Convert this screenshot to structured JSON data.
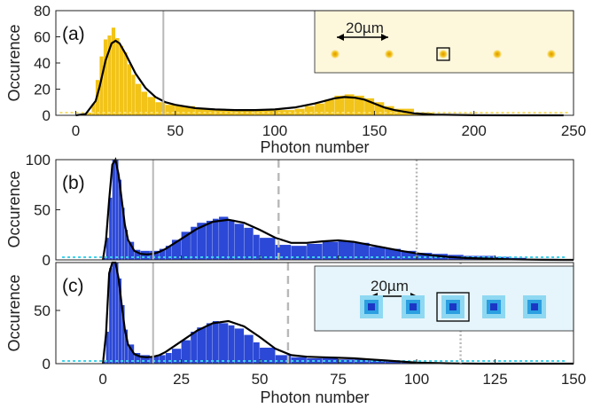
{
  "chart_data": [
    {
      "type": "bar",
      "panel_label": "(a)",
      "ylabel": "Occurence",
      "xlabel": "Photon number",
      "xlim": [
        -10,
        250
      ],
      "ylim": [
        0,
        80
      ],
      "xticks": [
        0,
        50,
        100,
        150,
        200,
        250
      ],
      "yticks": [
        0,
        20,
        40,
        60,
        80
      ],
      "threshold_lines": [
        {
          "x": 44,
          "style": "solid"
        }
      ],
      "colors": {
        "bars": "#f2c318",
        "bars_light": "#f7df72",
        "fit": "#000000"
      },
      "histogram": {
        "x": [
          5,
          8,
          10,
          12,
          14,
          16,
          18,
          20,
          22,
          24,
          26,
          28,
          30,
          33,
          36,
          40,
          45,
          50,
          60,
          70,
          80,
          90,
          100,
          110,
          115,
          120,
          125,
          130,
          135,
          140,
          145,
          150,
          155,
          160,
          170,
          180,
          200,
          220,
          240
        ],
        "values": [
          2,
          9,
          27,
          45,
          58,
          61,
          67,
          59,
          53,
          48,
          39,
          31,
          24,
          18,
          14,
          10,
          8,
          7,
          5,
          4,
          4,
          4,
          4,
          5,
          7,
          9,
          12,
          15,
          16,
          15,
          13,
          10,
          7,
          5,
          2,
          1,
          0,
          0,
          0
        ]
      },
      "fit": {
        "x": [
          0,
          5,
          10,
          12,
          15,
          18,
          20,
          22,
          25,
          30,
          35,
          40,
          45,
          50,
          60,
          70,
          80,
          90,
          100,
          110,
          120,
          125,
          130,
          135,
          140,
          145,
          150,
          155,
          160,
          170,
          180,
          200,
          220,
          245
        ],
        "y": [
          0,
          1,
          11,
          22,
          42,
          55,
          57,
          55,
          47,
          32,
          21,
          14,
          10,
          8,
          5.5,
          4.5,
          4,
          4,
          4.5,
          6,
          9,
          11,
          13,
          14,
          13.5,
          12,
          9,
          6,
          4,
          1.5,
          0.5,
          0.1,
          0,
          0
        ]
      },
      "inset": {
        "scale_label": "20µm"
      }
    },
    {
      "type": "bar",
      "panel_label": "(b)",
      "ylabel": "Occurence",
      "xlabel": "",
      "xlim": [
        -15,
        150
      ],
      "ylim": [
        0,
        100
      ],
      "xticks": [
        0,
        25,
        50,
        75,
        100,
        125,
        150
      ],
      "yticks": [
        0,
        50,
        100
      ],
      "threshold_lines": [
        {
          "x": 16,
          "style": "solid"
        },
        {
          "x": 56,
          "style": "dashed"
        },
        {
          "x": 100,
          "style": "dotted"
        }
      ],
      "colors": {
        "bars": "#2b48d6",
        "bars_light": "#3fd0ea",
        "fit": "#000000"
      },
      "histogram": {
        "x": [
          0,
          1,
          2,
          3,
          4,
          5,
          6,
          7,
          8,
          10,
          12,
          15,
          18,
          20,
          22,
          25,
          28,
          30,
          33,
          35,
          37,
          40,
          42,
          45,
          48,
          50,
          55,
          60,
          65,
          70,
          75,
          80,
          85,
          90,
          95,
          100,
          105,
          110,
          115,
          120,
          125,
          130,
          135,
          140
        ],
        "values": [
          2,
          22,
          62,
          100,
          100,
          80,
          52,
          30,
          18,
          10,
          9,
          9,
          11,
          14,
          20,
          28,
          33,
          37,
          39,
          41,
          43,
          40,
          36,
          32,
          25,
          22,
          15,
          14,
          16,
          18,
          19,
          17,
          13,
          11,
          9,
          7,
          6,
          5,
          4,
          4,
          3,
          2,
          1,
          1
        ]
      },
      "fit": {
        "x": [
          0,
          1,
          2,
          3,
          4,
          5,
          6,
          7,
          8,
          10,
          12,
          14,
          16,
          18,
          20,
          25,
          30,
          35,
          40,
          45,
          50,
          55,
          60,
          65,
          70,
          75,
          80,
          85,
          90,
          95,
          100,
          105,
          110,
          115,
          120,
          125,
          130,
          140,
          150
        ],
        "y": [
          0,
          20,
          60,
          95,
          100,
          85,
          60,
          35,
          20,
          9,
          6,
          5.5,
          6,
          8,
          11,
          21,
          31,
          38,
          40,
          37,
          30,
          22,
          17,
          17,
          18.5,
          19.5,
          18,
          15,
          12,
          9,
          6.5,
          4.5,
          3,
          2,
          1.5,
          1,
          0.5,
          0.1,
          0
        ]
      }
    },
    {
      "type": "bar",
      "panel_label": "(c)",
      "ylabel": "Occurence",
      "xlabel": "Photon number",
      "xlim": [
        -15,
        150
      ],
      "ylim": [
        0,
        95
      ],
      "xticks": [
        0,
        25,
        50,
        75,
        100,
        125,
        150
      ],
      "yticks": [
        0,
        50
      ],
      "threshold_lines": [
        {
          "x": 16,
          "style": "solid"
        },
        {
          "x": 59,
          "style": "dashed"
        },
        {
          "x": 114,
          "style": "dotted"
        }
      ],
      "colors": {
        "bars": "#2b48d6",
        "bars_light": "#3fd0ea",
        "fit": "#000000"
      },
      "histogram": {
        "x": [
          0,
          1,
          2,
          3,
          4,
          5,
          6,
          7,
          8,
          10,
          12,
          15,
          18,
          20,
          22,
          25,
          28,
          30,
          33,
          35,
          37,
          40,
          42,
          45,
          48,
          50,
          55,
          60,
          65,
          70,
          75,
          80,
          85,
          90,
          95,
          100
        ],
        "values": [
          2,
          30,
          90,
          95,
          95,
          80,
          55,
          32,
          18,
          10,
          8,
          7,
          8,
          10,
          14,
          22,
          30,
          34,
          38,
          40,
          38,
          36,
          33,
          27,
          20,
          15,
          8,
          6,
          5,
          5,
          4,
          4,
          3,
          2,
          1,
          1
        ]
      },
      "fit": {
        "x": [
          0,
          1,
          2,
          3,
          4,
          5,
          6,
          7,
          8,
          10,
          12,
          14,
          16,
          18,
          20,
          25,
          30,
          35,
          40,
          45,
          50,
          55,
          60,
          65,
          70,
          75,
          80,
          85,
          90,
          95,
          100,
          110,
          120,
          150
        ],
        "y": [
          0,
          28,
          85,
          95,
          95,
          80,
          55,
          32,
          18,
          9,
          6.5,
          6,
          6.5,
          8,
          11,
          21,
          31,
          38,
          40,
          35,
          25,
          14,
          8,
          6.5,
          6,
          5.5,
          5,
          4,
          3,
          2,
          1,
          0.3,
          0,
          0
        ]
      },
      "inset": {
        "scale_label": "20µm"
      }
    }
  ]
}
